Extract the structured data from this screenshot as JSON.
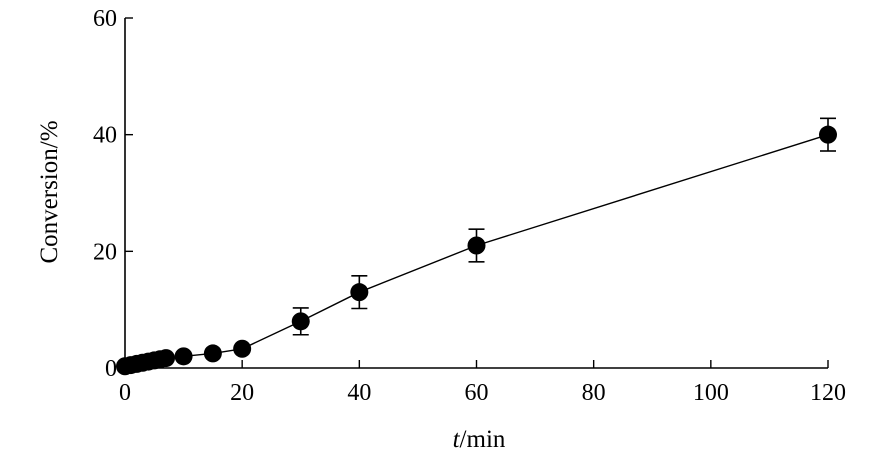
{
  "chart_data": {
    "type": "line",
    "title": "",
    "xlabel_italic": "t",
    "xlabel_rest": "/min",
    "ylabel": "Conversion/%",
    "xlim": [
      0,
      120
    ],
    "ylim": [
      0,
      60
    ],
    "xticks": [
      0,
      20,
      40,
      60,
      80,
      100,
      120
    ],
    "yticks": [
      0,
      20,
      40,
      60
    ],
    "grid": false,
    "legend": "none",
    "colors": {
      "line": "#000000",
      "marker": "#000000"
    },
    "series": [
      {
        "x": [
          0,
          1,
          2,
          3,
          4,
          5,
          6,
          7,
          10,
          15,
          20,
          30,
          40,
          60,
          120
        ],
        "y": [
          0.3,
          0.5,
          0.7,
          0.9,
          1.1,
          1.3,
          1.5,
          1.7,
          2.0,
          2.5,
          3.3,
          8.0,
          13.0,
          21.0,
          40.0
        ],
        "err": [
          0,
          0,
          0,
          0,
          0,
          0,
          0,
          0,
          0,
          0,
          0,
          2.3,
          2.8,
          2.8,
          2.8
        ]
      }
    ]
  }
}
